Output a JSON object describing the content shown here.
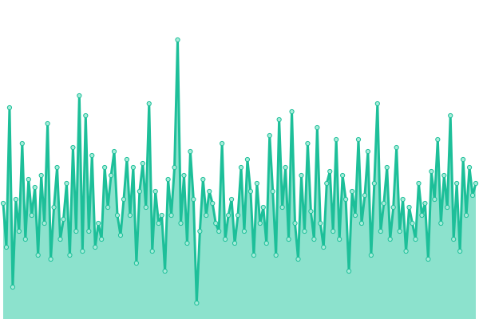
{
  "chart_data": {
    "type": "area",
    "color": "#1dbf99",
    "fill_color": "#8ce2cd",
    "marker_fill": "#a6ecd9",
    "ylim": [
      0,
      400
    ],
    "values": [
      145,
      90,
      265,
      40,
      150,
      110,
      220,
      100,
      175,
      130,
      165,
      80,
      180,
      120,
      245,
      75,
      140,
      190,
      100,
      125,
      170,
      80,
      215,
      110,
      280,
      85,
      255,
      110,
      205,
      90,
      120,
      100,
      190,
      140,
      180,
      210,
      130,
      105,
      150,
      200,
      130,
      190,
      70,
      160,
      195,
      140,
      270,
      85,
      160,
      120,
      130,
      60,
      175,
      130,
      190,
      350,
      120,
      180,
      95,
      210,
      150,
      20,
      110,
      175,
      130,
      160,
      145,
      120,
      110,
      220,
      100,
      130,
      150,
      95,
      130,
      190,
      110,
      200,
      160,
      80,
      170,
      120,
      140,
      95,
      230,
      160,
      80,
      250,
      140,
      190,
      100,
      260,
      120,
      75,
      180,
      110,
      220,
      135,
      100,
      240,
      120,
      90,
      170,
      185,
      110,
      225,
      100,
      180,
      150,
      60,
      160,
      130,
      225,
      120,
      155,
      210,
      80,
      170,
      270,
      110,
      145,
      190,
      100,
      140,
      215,
      110,
      150,
      85,
      140,
      120,
      100,
      170,
      130,
      145,
      75,
      185,
      150,
      225,
      120,
      180,
      140,
      255,
      100,
      170,
      85,
      200,
      130,
      190,
      155,
      170
    ]
  }
}
